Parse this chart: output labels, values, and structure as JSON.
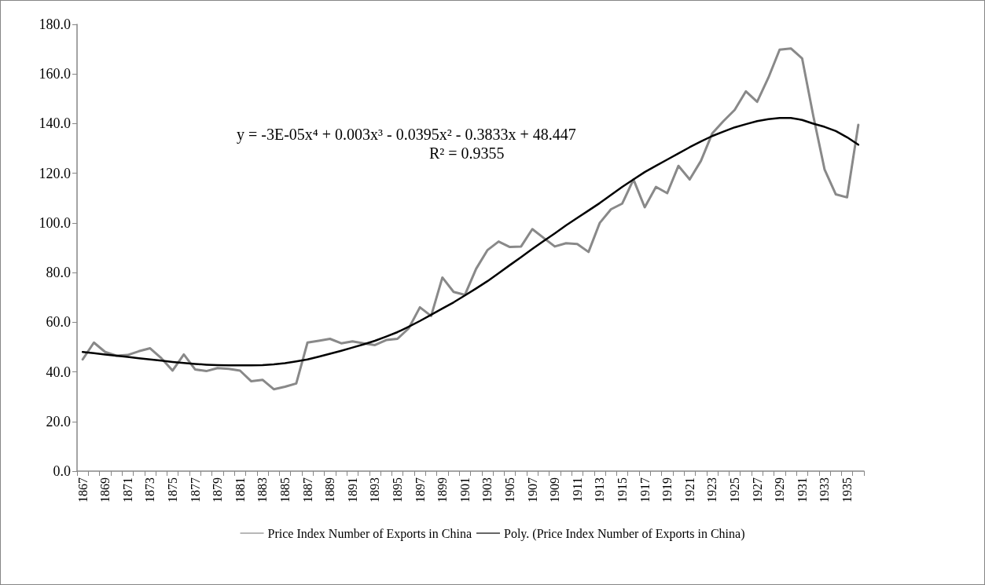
{
  "chart_data": {
    "type": "line",
    "categories": [
      "1867",
      null,
      "1869",
      null,
      "1871",
      null,
      "1873",
      null,
      "1875",
      null,
      "1877",
      null,
      "1879",
      null,
      "1881",
      null,
      "1883",
      null,
      "1885",
      null,
      "1887",
      null,
      "1889",
      null,
      "1891",
      null,
      "1893",
      null,
      "1895",
      null,
      "1897",
      null,
      "1899",
      null,
      "1901",
      null,
      "1903",
      null,
      "1905",
      null,
      "1907",
      null,
      "1909",
      null,
      "1911",
      null,
      "1913",
      null,
      "1915",
      null,
      "1917",
      null,
      "1919",
      null,
      "1921",
      null,
      "1923",
      null,
      "1925",
      null,
      "1927",
      null,
      "1929",
      null,
      "1931",
      null,
      "1933",
      null,
      "1935",
      null
    ],
    "series": [
      {
        "name": "Price Index Number of Exports in China",
        "color": "#898989",
        "values": [
          45,
          51.8,
          48,
          46.5,
          46.8,
          48.3,
          49.5,
          45.5,
          40.5,
          47,
          41,
          40.3,
          41.5,
          41.2,
          40.5,
          36.2,
          36.8,
          33,
          34,
          35.3,
          51.8,
          52.5,
          53.3,
          51.5,
          52.3,
          51.5,
          50.8,
          52.8,
          53.3,
          57.5,
          66,
          62.5,
          78,
          72.2,
          71,
          81.5,
          89,
          92.5,
          90.3,
          90.5,
          97.5,
          94,
          90.5,
          91.8,
          91.5,
          88.3,
          100,
          105.5,
          107.8,
          117.5,
          106.3,
          114.5,
          112,
          123,
          117.5,
          125,
          136,
          141,
          145.5,
          153,
          148.8,
          158.5,
          169.8,
          170.3,
          166.3,
          143,
          121.5,
          111.5,
          110.3,
          139.5
        ]
      },
      {
        "name": "Poly. (Price Index Number of Exports in China)",
        "color": "#000000",
        "values": [
          48.0,
          47.5,
          47.0,
          46.5,
          46.0,
          45.5,
          45.0,
          44.5,
          44.0,
          43.6,
          43.2,
          42.9,
          42.7,
          42.6,
          42.6,
          42.6,
          42.7,
          43.0,
          43.5,
          44.2,
          45.0,
          46.1,
          47.3,
          48.5,
          49.8,
          51.1,
          52.5,
          54.2,
          56.0,
          58.2,
          60.5,
          63.0,
          65.5,
          68.0,
          70.8,
          73.6,
          76.5,
          79.7,
          83.0,
          86.2,
          89.5,
          92.7,
          95.8,
          99.0,
          102.0,
          105.0,
          108.0,
          111.3,
          114.5,
          117.5,
          120.5,
          123.0,
          125.5,
          128.0,
          130.5,
          132.8,
          135.0,
          136.8,
          138.5,
          139.8,
          141.0,
          141.8,
          142.3,
          142.3,
          141.5,
          140.0,
          138.7,
          137.0,
          134.5,
          131.5
        ]
      }
    ],
    "ylim": [
      0,
      180
    ],
    "yticks": [
      {
        "value": 0,
        "label": "0.0"
      },
      {
        "value": 20,
        "label": "20.0"
      },
      {
        "value": 40,
        "label": "40.0"
      },
      {
        "value": 60,
        "label": "60.0"
      },
      {
        "value": 80,
        "label": "80.0"
      },
      {
        "value": 100,
        "label": "100.0"
      },
      {
        "value": 120,
        "label": "120.0"
      },
      {
        "value": 140,
        "label": "140.0"
      },
      {
        "value": 160,
        "label": "160.0"
      },
      {
        "value": 180,
        "label": "180.0"
      }
    ],
    "annotations": [
      "y = -3E-05x⁴ + 0.003x³ - 0.0395x² - 0.3833x + 48.447",
      "R² = 0.9355"
    ],
    "grid": false,
    "legend": "bottom",
    "marker": "none",
    "line_style": "solid"
  }
}
